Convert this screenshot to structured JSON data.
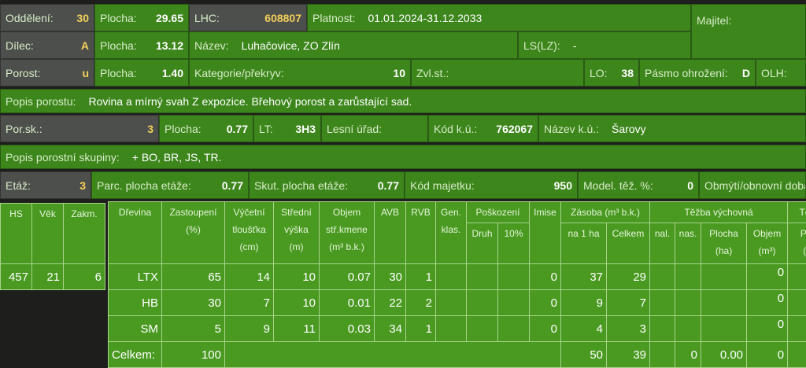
{
  "header": {
    "oddeleni": {
      "label": "Oddělení:",
      "value": "30"
    },
    "plocha1": {
      "label": "Plocha:",
      "value": "29.65"
    },
    "lhc": {
      "label": "LHC:",
      "value": "608807"
    },
    "platnost": {
      "label": "Platnost:",
      "value": "01.01.2024-31.12.2033"
    },
    "majitel": {
      "label": "Majitel:"
    },
    "dilec": {
      "label": "Dílec:",
      "value": "A"
    },
    "plocha2": {
      "label": "Plocha:",
      "value": "13.12"
    },
    "nazev": {
      "label": "Název:",
      "value": "Luhačovice, ZO Zlín"
    },
    "ls": {
      "label": "LS(LZ):",
      "value": "-"
    },
    "porost": {
      "label": "Porost:",
      "value": "u"
    },
    "plocha3": {
      "label": "Plocha:",
      "value": "1.40"
    },
    "kategorie": {
      "label": "Kategorie/překryv:",
      "value": "10"
    },
    "zvlst": {
      "label": "Zvl.st.:"
    },
    "lo": {
      "label": "LO:",
      "value": "38"
    },
    "pasmo": {
      "label": "Pásmo ohrožení:",
      "value": "D"
    },
    "olh": {
      "label": "OLH:"
    },
    "popis_porostu": {
      "label": "Popis porostu:",
      "value": "Rovina a mírný svah Z expozice. Břehový porost a zarůstající sad."
    },
    "porsk": {
      "label": "Por.sk.:",
      "value": "3"
    },
    "plocha4": {
      "label": "Plocha:",
      "value": "0.77"
    },
    "lt": {
      "label": "LT:",
      "value": "3H3"
    },
    "lesni_urad": {
      "label": "Lesní úřad:"
    },
    "kod_ku": {
      "label": "Kód k.ú.:",
      "value": "762067"
    },
    "nazev_ku": {
      "label": "Název k.ú.:",
      "value": "Šarovy"
    },
    "popis_skupiny": {
      "label": "Popis porostní skupiny:",
      "value": "+ BO, BR, JS, TR."
    },
    "etaz": {
      "label": "Etáž:",
      "value": "3"
    },
    "parc_plocha": {
      "label": "Parc. plocha etáže:",
      "value": "0.77"
    },
    "skut_plocha": {
      "label": "Skut. plocha etáže:",
      "value": "0.77"
    },
    "kod_majetku": {
      "label": "Kód majetku:",
      "value": "950"
    },
    "model_tez": {
      "label": "Model. těž. %:",
      "value": "0"
    },
    "obmyti": {
      "label": "Obmýtí/obnovní doba"
    }
  },
  "left_table": {
    "headers": [
      "HS",
      "Věk",
      "Zakm."
    ],
    "values": [
      "457",
      "21",
      "6"
    ]
  },
  "main_table": {
    "h": {
      "drevina": "Dřevina",
      "zast": "Zastoupení",
      "zast2": "(%)",
      "vyc": "Výčetní",
      "vyc2": "tloušťka",
      "vyc3": "(cm)",
      "str": "Střední",
      "str2": "výška",
      "str3": "(m)",
      "obj": "Objem",
      "obj2": "stř.kmene",
      "obj3": "(m³ b.k.)",
      "avb": "AVB",
      "rvb": "RVB",
      "gen": "Gen.",
      "gen2": "klas.",
      "posk": "Poškození",
      "druh": "Druh",
      "p10": "10%",
      "imise": "Imise",
      "zasoba": "Zásoba (m³ b.k.)",
      "na1ha": "na 1 ha",
      "celkem": "Celkem",
      "tezba": "Těžba výchovná",
      "nal": "nal.",
      "nas": "nas.",
      "plocha": "Plocha",
      "plocha2": "(ha)",
      "objem": "Objem",
      "objem2": "(m³)",
      "tez2": "Těž",
      "plo": "Plo",
      "plo2": "(h"
    },
    "rows": [
      {
        "drevina": "LTX",
        "zast": "65",
        "vyc": "14",
        "str": "10",
        "obj": "0.07",
        "avb": "30",
        "rvb": "1",
        "imise": "0",
        "na1ha": "37",
        "celkem": "29",
        "objem": "0"
      },
      {
        "drevina": "HB",
        "zast": "30",
        "vyc": "7",
        "str": "10",
        "obj": "0.01",
        "avb": "22",
        "rvb": "2",
        "imise": "0",
        "na1ha": "9",
        "celkem": "7",
        "objem": "0"
      },
      {
        "drevina": "SM",
        "zast": "5",
        "vyc": "9",
        "str": "11",
        "obj": "0.03",
        "avb": "34",
        "rvb": "1",
        "imise": "0",
        "na1ha": "4",
        "celkem": "3",
        "objem": "0"
      }
    ],
    "total": {
      "label": "Celkem:",
      "zast": "100",
      "na1ha": "50",
      "celkem": "39",
      "nas": "0",
      "plocha": "0.00",
      "objem": "0"
    }
  }
}
